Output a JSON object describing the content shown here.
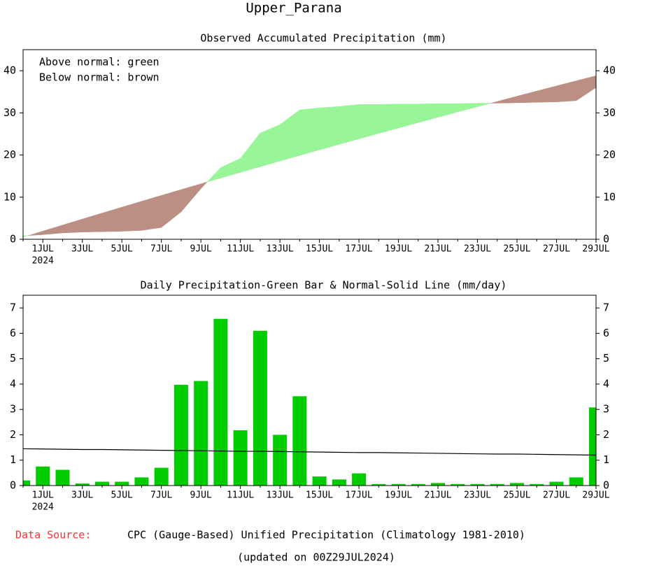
{
  "title": "Upper_Parana",
  "chart_data": [
    {
      "type": "band",
      "title": "Observed Accumulated Precipitation (mm)",
      "annotations": [
        "Above normal: green",
        "Below normal: brown"
      ],
      "categories": [
        null,
        "1JUL",
        null,
        "3JUL",
        null,
        "5JUL",
        null,
        "7JUL",
        null,
        "9JUL",
        null,
        "11JUL",
        null,
        "13JUL",
        null,
        "15JUL",
        null,
        "17JUL",
        null,
        "19JUL",
        null,
        "21JUL",
        null,
        "23JUL",
        null,
        "25JUL",
        null,
        "27JUL",
        null,
        "29JUL"
      ],
      "x_sublabel": "2024",
      "above_color": "#98f598",
      "below_color": "#bc8f84",
      "series": [
        {
          "values": [
            0.8,
            1.1,
            1.5,
            1.7,
            1.8,
            1.9,
            2.1,
            2.8,
            6.5,
            12.0,
            17.0,
            19.2,
            25.2,
            27.2,
            30.7,
            31.2,
            31.5,
            32.0,
            32.0,
            32.1,
            32.1,
            32.2,
            32.2,
            32.3,
            32.3,
            32.4,
            32.5,
            32.6,
            32.9,
            36.0
          ]
        },
        {
          "values": [
            0.5,
            1.94,
            3.37,
            4.8,
            6.21,
            7.62,
            9.02,
            10.41,
            11.79,
            13.16,
            14.53,
            15.88,
            17.23,
            18.57,
            19.9,
            21.22,
            22.53,
            23.83,
            25.13,
            26.41,
            27.69,
            28.96,
            30.22,
            31.47,
            32.71,
            33.95,
            35.18,
            36.4,
            37.61,
            38.81
          ]
        }
      ],
      "ylim": [
        0,
        45
      ],
      "yticks": [
        0,
        10,
        20,
        30,
        40
      ]
    },
    {
      "type": "bar_line",
      "title": "Daily Precipitation-Green Bar & Normal-Solid Line (mm/day)",
      "categories": [
        null,
        "1JUL",
        null,
        "3JUL",
        null,
        "5JUL",
        null,
        "7JUL",
        null,
        "9JUL",
        null,
        "11JUL",
        null,
        "13JUL",
        null,
        "15JUL",
        null,
        "17JUL",
        null,
        "19JUL",
        null,
        "21JUL",
        null,
        "23JUL",
        null,
        "25JUL",
        null,
        "27JUL",
        null,
        "29JUL"
      ],
      "x_sublabel": "2024",
      "series": [
        {
          "type": "bar",
          "color": "#00cc00",
          "values": [
            0.2,
            0.75,
            0.62,
            0.08,
            0.15,
            0.15,
            0.32,
            0.7,
            3.97,
            4.12,
            6.57,
            2.18,
            6.1,
            2.0,
            3.52,
            0.36,
            0.24,
            0.48,
            0.06,
            0.06,
            0.06,
            0.1,
            0.06,
            0.06,
            0.06,
            0.1,
            0.06,
            0.15,
            0.32,
            3.08
          ]
        },
        {
          "type": "line",
          "color": "#000000",
          "values": [
            1.45,
            1.44,
            1.43,
            1.42,
            1.42,
            1.41,
            1.4,
            1.39,
            1.38,
            1.37,
            1.36,
            1.35,
            1.35,
            1.34,
            1.33,
            1.32,
            1.31,
            1.3,
            1.3,
            1.29,
            1.28,
            1.27,
            1.26,
            1.25,
            1.24,
            1.24,
            1.23,
            1.22,
            1.21,
            1.2
          ]
        }
      ],
      "ylim": [
        0,
        7.5
      ],
      "yticks": [
        0,
        1,
        2,
        3,
        4,
        5,
        6,
        7
      ]
    }
  ],
  "footer": {
    "source_label": "Data Source:",
    "source": "CPC (Gauge-Based) Unified Precipitation (Climatology 1981-2010)",
    "updated": "(updated on 00Z29JUL2024)"
  }
}
